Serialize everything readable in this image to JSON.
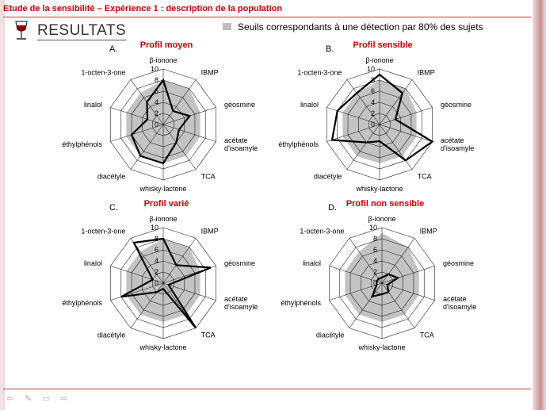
{
  "header": {
    "title": "Etude de la sensibilité – Expérience 1 : description de la population",
    "section": "RESULTATS"
  },
  "legend": {
    "text": "Seuils correspondants à une détection par 80% des sujets",
    "swatch_color": "#bdbdbd"
  },
  "icons": {
    "glass": "wine-glass-icon",
    "nav": [
      "arrow-left-icon",
      "pen-icon",
      "screen-icon",
      "arrow-right-icon"
    ]
  },
  "chart_data": [
    {
      "type": "radar",
      "letter": "A.",
      "title": "Profil moyen",
      "axes": [
        "β-ionone",
        "IBMP",
        "géosmine",
        "acétate d'isoamyle",
        "TCA",
        "whisky-lactone",
        "diacétyle",
        "éthylphénols",
        "linalol",
        "1-octen-3-one"
      ],
      "ticks": [
        0,
        2,
        4,
        6,
        8,
        10
      ],
      "range": [
        0,
        10
      ],
      "series": [
        {
          "role": "seuil",
          "values": [
            8,
            8,
            7,
            7,
            7,
            7,
            7,
            7,
            7,
            7
          ]
        },
        {
          "role": "profil",
          "values": [
            8,
            3,
            5,
            3,
            4,
            7,
            7,
            6,
            3,
            5
          ]
        }
      ]
    },
    {
      "type": "radar",
      "letter": "B.",
      "title": "Profil sensible",
      "axes": [
        "β-ionone",
        "IBMP",
        "géosmine",
        "acétate d'isoamyle",
        "TCA",
        "whisky-lactone",
        "diacétyle",
        "éthylphénols",
        "linalol",
        "1-octen-3-one"
      ],
      "ticks": [
        0,
        2,
        4,
        6,
        8,
        10
      ],
      "range": [
        0,
        10
      ],
      "series": [
        {
          "role": "seuil",
          "values": [
            8,
            8,
            7,
            7,
            7,
            7,
            7,
            7,
            7,
            7
          ]
        },
        {
          "role": "profil",
          "values": [
            9,
            7,
            3,
            10,
            8,
            3,
            4,
            9,
            8,
            7
          ]
        }
      ]
    },
    {
      "type": "radar",
      "letter": "C.",
      "title": "Profil varié",
      "axes": [
        "β-ionone",
        "IBMP",
        "géosmine",
        "acétate d'isoamyle",
        "TCA",
        "whisky-lactone",
        "diacétyle",
        "éthylphénols",
        "linalol",
        "1-octen-3-one"
      ],
      "ticks": [
        0,
        2,
        4,
        6,
        8,
        10
      ],
      "range": [
        0,
        10
      ],
      "series": [
        {
          "role": "seuil",
          "values": [
            8,
            8,
            7,
            7,
            7,
            7,
            7,
            7,
            7,
            7
          ]
        },
        {
          "role": "profil",
          "values": [
            8,
            4,
            9,
            1,
            10,
            1,
            2,
            8,
            2,
            9
          ]
        }
      ]
    },
    {
      "type": "radar",
      "letter": "D.",
      "title": "Profil non sensible",
      "axes": [
        "β-ionone",
        "IBMP",
        "géosmine",
        "acétate d'isoamyle",
        "TCA",
        "whisky-lactone",
        "diacétyle",
        "éthylphénols",
        "linalol",
        "1-octen-3-one"
      ],
      "ticks": [
        0,
        2,
        4,
        6,
        8,
        10
      ],
      "range": [
        0,
        10
      ],
      "series": [
        {
          "role": "seuil",
          "values": [
            9,
            8,
            7,
            7,
            7,
            7,
            7,
            7,
            7,
            7
          ]
        },
        {
          "role": "profil",
          "values": [
            1,
            2,
            3,
            1,
            2,
            2,
            3,
            1,
            1,
            1
          ]
        }
      ]
    }
  ]
}
